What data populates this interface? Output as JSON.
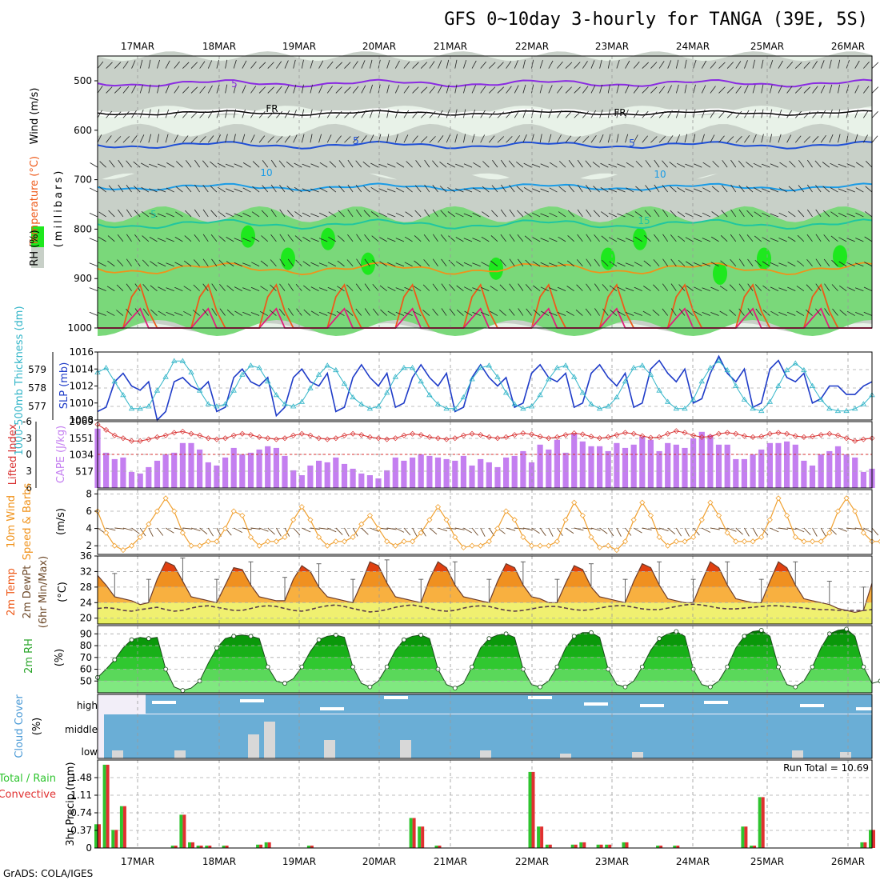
{
  "title": "GFS 0~10day 3-hourly for TANGA (39E, 5S)",
  "footer": "GrADS: COLA/IGES",
  "date_labels": [
    "17MAR",
    "18MAR",
    "19MAR",
    "20MAR",
    "21MAR",
    "22MAR",
    "23MAR",
    "24MAR",
    "25MAR",
    "26MAR"
  ],
  "colors": {
    "rh_green": "#7ad87a",
    "rh_bright": "#1ee81e",
    "rh_gray": "#c8d0c8",
    "rh_light": "#e8f2e8",
    "purple": "#8a2be2",
    "black": "#000000",
    "blue": "#1f4fd6",
    "lightblue": "#1a9be6",
    "teal": "#1fc6a0",
    "orange": "#f0921a",
    "red_orange": "#ee5a1a",
    "magenta": "#e0207a",
    "slp_line": "#1f3cc8",
    "thk_line": "#33b5c8",
    "cape_bar": "#c47ff0",
    "li_line": "#d83030",
    "wind_line": "#f0a030",
    "barb": "#6e4a2a",
    "cloud": "#6aaed6",
    "cloud_low": "#d8d8d8",
    "precip_green": "#2ec42e",
    "precip_red": "#e03030"
  },
  "panels": {
    "upper_air": {
      "label_wind": "Wind (m/s)",
      "label_temp": "Temperature (°C)",
      "label_rh": "RH (%)",
      "label_mb": "(millibars)",
      "yticks": [
        "500",
        "600",
        "700",
        "800",
        "900",
        "1000"
      ],
      "contour_labels": [
        "5",
        "FR",
        "FR",
        "5",
        "5",
        "10",
        "10",
        "5",
        "15"
      ]
    },
    "slp": {
      "label_left": "1000-500mb Thickness (dm)",
      "label_right": "SLP (mb)",
      "thk_ticks": [
        "579",
        "578",
        "577"
      ],
      "slp_ticks": [
        "1016",
        "1014",
        "1012",
        "1010",
        "1008"
      ]
    },
    "cape": {
      "label_left": "Lifted Index",
      "label_right": "CAPE (J/kg)",
      "li_ticks": [
        "-6",
        "-3",
        "0",
        "3",
        "6"
      ],
      "cape_ticks": [
        "2069",
        "1551",
        "1034",
        "517"
      ]
    },
    "wind10": {
      "label_left": "10m Wind",
      "label_mid": "Speed & Barbs",
      "label_unit": "(m/s)",
      "yticks": [
        "8",
        "6",
        "4",
        "2"
      ]
    },
    "temp2m": {
      "label_a": "2m Temp",
      "label_b": "2m DewPt",
      "label_c": "(6hr Min/Max)",
      "label_unit": "(°C)",
      "yticks": [
        "36",
        "32",
        "28",
        "24",
        "20"
      ]
    },
    "rh2m": {
      "label": "2m RH",
      "label_unit": "(%)",
      "yticks": [
        "90",
        "80",
        "70",
        "60",
        "50"
      ]
    },
    "cloud": {
      "label": "Cloud Cover",
      "label_unit": "(%)",
      "levels": [
        "high",
        "middle",
        "low"
      ]
    },
    "precip": {
      "label_a": "Total / Rain",
      "label_b": "Convective",
      "label_c": "3hr Precip (mm)",
      "yticks": [
        "1.48",
        "1.11",
        "0.74",
        "0.37",
        "0"
      ],
      "run_total": "Run Total = 10.69"
    }
  },
  "chart_data": [
    {
      "type": "line",
      "name": "slp",
      "ylabel": "SLP (mb)",
      "ylim": [
        1008,
        1016
      ],
      "values": [
        1009,
        1009.5,
        1012.5,
        1013.5,
        1012,
        1011.5,
        1012.5,
        1008,
        1009,
        1012.5,
        1013,
        1012,
        1011.5,
        1012.5,
        1009,
        1009.5,
        1013,
        1014,
        1012.5,
        1012,
        1013,
        1008.5,
        1009.5,
        1013,
        1014,
        1012.5,
        1012,
        1013.5,
        1009,
        1009.5,
        1013,
        1014.5,
        1013,
        1012,
        1013.5,
        1009.5,
        1010,
        1013,
        1014.5,
        1013,
        1012,
        1013.5,
        1009,
        1009.5,
        1013,
        1014.5,
        1013,
        1012,
        1013,
        1009.5,
        1010,
        1013.5,
        1014.5,
        1013,
        1012.5,
        1013.5,
        1009.5,
        1010,
        1013.5,
        1014.5,
        1013,
        1012,
        1013.5,
        1009.5,
        1010,
        1014,
        1015,
        1013.5,
        1012.5,
        1014,
        1010,
        1010.5,
        1013.5,
        1015.5,
        1013.5,
        1012.5,
        1014,
        1009.5,
        1010,
        1014,
        1015,
        1013,
        1012.5,
        1013.5,
        1010,
        1010.5,
        1012,
        1012,
        1011,
        1011,
        1012,
        1012.5
      ]
    },
    {
      "type": "line",
      "name": "thickness",
      "ylabel": "1000-500mb Thickness (dm)",
      "ylim": [
        576.5,
        579.5
      ],
      "values": [
        578.6,
        578.8,
        578.2,
        577.6,
        577.0,
        577.0,
        577.1,
        577.8,
        578.4,
        579.1,
        579.1,
        578.6,
        577.8,
        577.2,
        577.1,
        577.2,
        577.8,
        578.5,
        578.9,
        578.8,
        578.2,
        577.6,
        577.2,
        577.1,
        577.3,
        577.9,
        578.5,
        578.9,
        578.7,
        578.1,
        577.5,
        577.2,
        577.0,
        577.1,
        577.7,
        578.4,
        578.8,
        578.8,
        578.2,
        577.6,
        577.2,
        577.0,
        577.0,
        577.5,
        578.3,
        578.8,
        578.9,
        578.4,
        577.7,
        577.2,
        577.0,
        577.1,
        577.6,
        578.3,
        578.8,
        578.9,
        578.4,
        577.7,
        577.2,
        577.0,
        577.1,
        577.5,
        578.2,
        578.8,
        578.9,
        578.5,
        577.8,
        577.3,
        577.0,
        577.0,
        577.4,
        578.2,
        578.8,
        579.1,
        578.7,
        578.0,
        577.4,
        577.0,
        576.9,
        577.3,
        578.0,
        578.7,
        579.0,
        578.7,
        578.0,
        577.4,
        577.0,
        576.9,
        576.9,
        577.0,
        577.2,
        577.6
      ]
    },
    {
      "type": "bar",
      "name": "cape",
      "ylabel": "CAPE (J/kg)",
      "ylim": [
        0,
        2069
      ],
      "values": [
        1850,
        1100,
        900,
        950,
        500,
        450,
        650,
        850,
        1050,
        1100,
        1400,
        1400,
        1200,
        800,
        700,
        950,
        1250,
        1050,
        1100,
        1200,
        1300,
        1250,
        1000,
        550,
        400,
        700,
        850,
        800,
        950,
        750,
        600,
        450,
        400,
        300,
        550,
        950,
        850,
        950,
        1050,
        1000,
        950,
        900,
        850,
        1000,
        700,
        900,
        800,
        650,
        950,
        1000,
        1150,
        800,
        1350,
        1200,
        1500,
        1100,
        1700,
        1450,
        1300,
        1300,
        1150,
        1400,
        1250,
        1350,
        1600,
        1500,
        1150,
        1400,
        1350,
        1250,
        1550,
        1750,
        1650,
        1350,
        1350,
        900,
        900,
        1050,
        1200,
        1400,
        1400,
        1450,
        1350,
        850,
        700,
        1050,
        1150,
        1300,
        1050,
        950,
        500,
        600
      ]
    },
    {
      "type": "line",
      "name": "lifted_index",
      "ylabel": "Lifted Index",
      "ylim": [
        6,
        -6
      ],
      "values": [
        -5.5,
        -4.5,
        -3.5,
        -3.0,
        -2.5,
        -2.5,
        -2.8,
        -3.2,
        -3.5,
        -4.0,
        -4.2,
        -3.8,
        -3.5,
        -3.0,
        -2.8,
        -3.0,
        -3.5,
        -3.8,
        -3.6,
        -3.2,
        -3.0,
        -2.8,
        -3.0,
        -3.5,
        -3.8,
        -3.5,
        -3.0,
        -2.8,
        -3.0,
        -3.5,
        -3.8,
        -3.6,
        -3.2,
        -3.0,
        -2.8,
        -3.0,
        -3.5,
        -3.8,
        -3.6,
        -3.2,
        -3.0,
        -2.8,
        -3.0,
        -3.5,
        -3.8,
        -3.6,
        -3.2,
        -3.0,
        -3.2,
        -3.6,
        -3.9,
        -3.7,
        -3.3,
        -3.0,
        -3.2,
        -3.6,
        -3.9,
        -3.7,
        -3.3,
        -3.0,
        -3.2,
        -3.6,
        -4.0,
        -3.8,
        -3.4,
        -3.1,
        -3.2,
        -3.8,
        -4.3,
        -4.0,
        -3.5,
        -3.2,
        -3.3,
        -3.8,
        -4.0,
        -3.8,
        -3.4,
        -3.2,
        -3.3,
        -3.8,
        -4.0,
        -3.8,
        -3.4,
        -3.2,
        -3.3,
        -3.6,
        -3.8,
        -3.5,
        -3.0,
        -2.5,
        -2.8,
        -3.0
      ]
    },
    {
      "type": "line",
      "name": "wind_speed_10m",
      "ylabel": "10m Wind Speed (m/s)",
      "ylim": [
        1,
        8.5
      ],
      "values": [
        6.0,
        3.5,
        2.0,
        1.5,
        2.0,
        3.0,
        4.5,
        6.0,
        7.5,
        6.0,
        3.5,
        2.0,
        2.0,
        2.5,
        2.5,
        4.0,
        6.0,
        5.5,
        3.0,
        2.0,
        2.5,
        2.5,
        3.0,
        5.0,
        6.5,
        5.0,
        3.0,
        2.0,
        2.5,
        2.5,
        3.0,
        4.5,
        5.5,
        4.0,
        2.5,
        2.0,
        2.5,
        2.5,
        3.5,
        5.0,
        6.5,
        5.0,
        3.0,
        1.8,
        2.0,
        2.0,
        2.5,
        4.0,
        6.0,
        5.0,
        3.0,
        2.0,
        2.0,
        2.0,
        2.5,
        5.0,
        7.0,
        5.5,
        3.0,
        1.8,
        2.0,
        1.5,
        2.5,
        5.0,
        7.0,
        5.5,
        3.0,
        2.0,
        2.5,
        2.5,
        3.0,
        5.0,
        7.0,
        5.5,
        3.5,
        2.5,
        2.5,
        2.5,
        3.0,
        5.0,
        7.5,
        5.5,
        3.0,
        2.5,
        2.5,
        2.5,
        3.5,
        6.0,
        7.5,
        6.0,
        3.5,
        2.5,
        2.5,
        5.0
      ]
    },
    {
      "type": "area",
      "name": "temp_2m",
      "ylabel": "2m Temp (°C)",
      "ylim": [
        18.5,
        36
      ],
      "values": [
        31.0,
        28.5,
        25.5,
        25.0,
        24.5,
        23.5,
        24.0,
        30.0,
        34.5,
        33.5,
        29.5,
        25.5,
        25.0,
        24.5,
        24.0,
        28.5,
        33.0,
        32.5,
        28.5,
        25.5,
        25.0,
        24.5,
        24.5,
        30.0,
        33.5,
        32.0,
        28.0,
        25.5,
        25.0,
        24.5,
        24.0,
        29.0,
        34.5,
        33.5,
        29.0,
        25.5,
        25.0,
        24.5,
        24.0,
        30.0,
        34.5,
        33.0,
        28.5,
        25.5,
        25.0,
        24.5,
        24.0,
        29.5,
        34.0,
        33.0,
        28.5,
        25.5,
        25.0,
        24.0,
        24.0,
        29.0,
        33.5,
        32.5,
        28.0,
        25.5,
        25.0,
        24.5,
        24.0,
        29.5,
        34.0,
        33.0,
        28.5,
        25.0,
        24.5,
        24.0,
        24.0,
        29.5,
        34.5,
        33.0,
        28.5,
        25.0,
        24.5,
        24.0,
        24.0,
        29.5,
        34.5,
        33.0,
        28.5,
        25.0,
        24.5,
        24.0,
        23.5,
        22.5,
        22.0,
        21.5,
        22.0,
        29.0
      ]
    },
    {
      "type": "line",
      "name": "dewpoint_2m",
      "ylabel": "2m DewPt (°C)",
      "ylim": [
        18.5,
        36
      ],
      "values": [
        22.5,
        22.7,
        22.5,
        22.0,
        21.8,
        22.2,
        22.5,
        22.8,
        22.2,
        21.8,
        22.0,
        22.6,
        23.0,
        23.2,
        22.8,
        22.4,
        22.0,
        22.0,
        22.5,
        23.0,
        23.2,
        23.0,
        22.5,
        22.0,
        21.8,
        22.2,
        22.8,
        23.2,
        23.4,
        23.0,
        22.5,
        22.0,
        21.6,
        21.8,
        22.2,
        22.8,
        23.2,
        23.4,
        23.0,
        22.5,
        22.0,
        21.8,
        22.0,
        22.6,
        23.0,
        23.2,
        23.0,
        22.5,
        22.0,
        21.8,
        22.0,
        22.4,
        22.8,
        23.0,
        23.0,
        22.6,
        22.2,
        22.0,
        22.2,
        22.6,
        23.0,
        23.2,
        23.2,
        22.8,
        22.4,
        22.2,
        22.2,
        22.6,
        23.0,
        23.4,
        23.6,
        23.4,
        23.0,
        22.6,
        22.4,
        22.4,
        22.6,
        22.8,
        23.0,
        23.2,
        23.2,
        23.0,
        22.8,
        22.6,
        22.4,
        22.2,
        22.2,
        22.0,
        22.0,
        22.0,
        22.0,
        22.2
      ]
    },
    {
      "type": "area",
      "name": "rh_2m",
      "ylabel": "2m RH (%)",
      "ylim": [
        40,
        97
      ],
      "values": [
        53,
        60,
        68,
        78,
        85,
        87,
        86,
        87,
        60,
        45,
        42,
        44,
        50,
        65,
        78,
        86,
        88,
        89,
        88,
        86,
        62,
        50,
        48,
        52,
        62,
        75,
        85,
        88,
        89,
        87,
        62,
        48,
        45,
        50,
        62,
        76,
        85,
        88,
        89,
        86,
        60,
        47,
        44,
        48,
        62,
        78,
        86,
        89,
        90,
        87,
        60,
        47,
        45,
        50,
        62,
        78,
        88,
        91,
        91,
        87,
        60,
        47,
        45,
        50,
        62,
        76,
        86,
        90,
        92,
        88,
        60,
        47,
        45,
        50,
        62,
        78,
        88,
        92,
        93,
        88,
        62,
        47,
        45,
        50,
        62,
        78,
        90,
        93,
        94,
        88,
        62,
        48,
        50,
        62
      ]
    },
    {
      "type": "bar",
      "name": "precip_3hr",
      "ylabel": "3hr Precip (mm)",
      "ylim": [
        0,
        1.85
      ],
      "values": [
        0.5,
        1.75,
        0.38,
        0.88,
        0,
        0,
        0,
        0,
        0,
        0.05,
        0.7,
        0.12,
        0.05,
        0.05,
        0,
        0.05,
        0,
        0,
        0,
        0.07,
        0.12,
        0,
        0,
        0,
        0,
        0.05,
        0,
        0,
        0,
        0,
        0,
        0,
        0,
        0,
        0,
        0,
        0,
        0.63,
        0.45,
        0,
        0.05,
        0,
        0,
        0,
        0,
        0,
        0,
        0,
        0,
        0,
        0,
        1.6,
        0.45,
        0.07,
        0,
        0,
        0.07,
        0.12,
        0,
        0.07,
        0.07,
        0,
        0.12,
        0,
        0,
        0,
        0.05,
        0,
        0.05,
        0,
        0,
        0,
        0,
        0,
        0,
        0,
        0.45,
        0.05,
        1.07,
        0,
        0,
        0,
        0,
        0,
        0,
        0,
        0,
        0,
        0,
        0,
        0.12,
        0.38,
        0
      ]
    }
  ]
}
